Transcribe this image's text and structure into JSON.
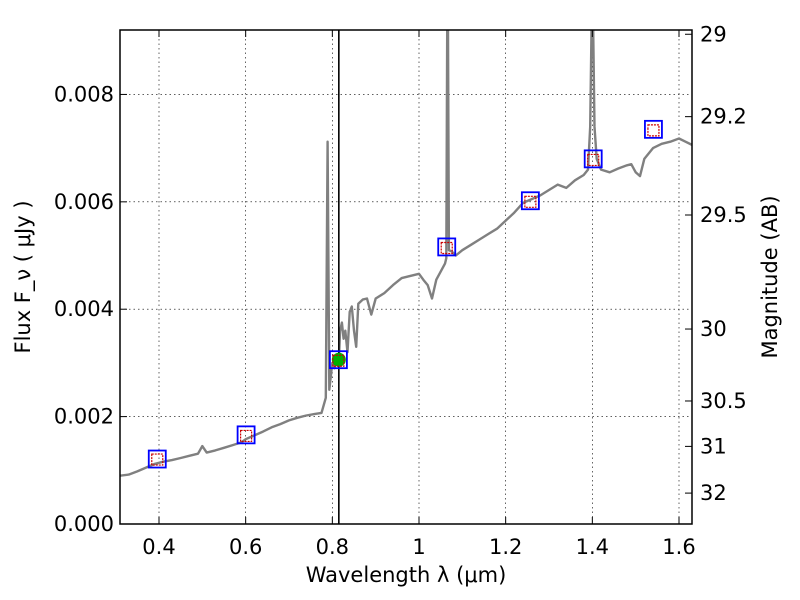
{
  "chart_data": {
    "type": "line",
    "title": "",
    "xlabel": "Wavelength  λ (μm)",
    "ylabel": "Flux  F_ν  ( μJy )",
    "ylabel_right": "Magnitude (AB)",
    "xlim": [
      0.31,
      1.63
    ],
    "ylim": [
      0.0,
      0.0092
    ],
    "grid": true,
    "x_ticks": [
      0.4,
      0.6,
      0.8,
      1.0,
      1.2,
      1.4,
      1.6
    ],
    "x_tick_labels": [
      "0.4",
      "0.6",
      "0.8",
      "1",
      "1.2",
      "1.4",
      "1.6"
    ],
    "y_ticks": [
      0.0,
      0.002,
      0.004,
      0.006,
      0.008
    ],
    "y_tick_labels": [
      "0.000",
      "0.002",
      "0.004",
      "0.006",
      "0.008"
    ],
    "mag_ticks": [
      29,
      29.2,
      29.5,
      30,
      30.5,
      31,
      32
    ],
    "mag_tick_labels": [
      "29",
      "29.2",
      "29.5",
      "30",
      "30.5",
      "31",
      "32"
    ],
    "vertical_line_x": 0.815,
    "colors": {
      "spectrum": "#808080",
      "observed": "#0000ff",
      "model": "#cc0000",
      "highlight": "#00b000"
    },
    "series": [
      {
        "name": "model spectrum",
        "kind": "line",
        "points": [
          [
            0.31,
            0.0009
          ],
          [
            0.33,
            0.00092
          ],
          [
            0.35,
            0.00098
          ],
          [
            0.37,
            0.00105
          ],
          [
            0.39,
            0.00112
          ],
          [
            0.41,
            0.00116
          ],
          [
            0.43,
            0.00119
          ],
          [
            0.45,
            0.00123
          ],
          [
            0.47,
            0.00127
          ],
          [
            0.49,
            0.00131
          ],
          [
            0.5,
            0.00145
          ],
          [
            0.51,
            0.00133
          ],
          [
            0.53,
            0.00137
          ],
          [
            0.55,
            0.00142
          ],
          [
            0.57,
            0.00147
          ],
          [
            0.59,
            0.00152
          ],
          [
            0.6,
            0.00158
          ],
          [
            0.62,
            0.00165
          ],
          [
            0.64,
            0.00172
          ],
          [
            0.66,
            0.0018
          ],
          [
            0.68,
            0.00186
          ],
          [
            0.7,
            0.00193
          ],
          [
            0.72,
            0.00198
          ],
          [
            0.74,
            0.00202
          ],
          [
            0.76,
            0.00205
          ],
          [
            0.775,
            0.00207
          ],
          [
            0.785,
            0.00235
          ],
          [
            0.789,
            0.00712
          ],
          [
            0.793,
            0.0025
          ],
          [
            0.8,
            0.003
          ],
          [
            0.805,
            0.0029
          ],
          [
            0.81,
            0.0031
          ],
          [
            0.815,
            0.00302
          ],
          [
            0.818,
            0.0036
          ],
          [
            0.822,
            0.00375
          ],
          [
            0.826,
            0.00345
          ],
          [
            0.83,
            0.0036
          ],
          [
            0.835,
            0.0032
          ],
          [
            0.84,
            0.00395
          ],
          [
            0.845,
            0.00405
          ],
          [
            0.85,
            0.0036
          ],
          [
            0.855,
            0.0033
          ],
          [
            0.86,
            0.0041
          ],
          [
            0.87,
            0.00418
          ],
          [
            0.88,
            0.0042
          ],
          [
            0.89,
            0.0039
          ],
          [
            0.9,
            0.0042
          ],
          [
            0.92,
            0.0043
          ],
          [
            0.94,
            0.00445
          ],
          [
            0.96,
            0.00458
          ],
          [
            0.98,
            0.00462
          ],
          [
            1.0,
            0.00466
          ],
          [
            1.01,
            0.00455
          ],
          [
            1.02,
            0.00445
          ],
          [
            1.03,
            0.0042
          ],
          [
            1.04,
            0.00455
          ],
          [
            1.05,
            0.0047
          ],
          [
            1.06,
            0.00485
          ],
          [
            1.063,
            0.00495
          ],
          [
            1.065,
            0.0092
          ],
          [
            1.067,
            0.0092
          ],
          [
            1.069,
            0.0051
          ],
          [
            1.075,
            0.00508
          ],
          [
            1.085,
            0.005
          ],
          [
            1.1,
            0.0051
          ],
          [
            1.12,
            0.0052
          ],
          [
            1.14,
            0.0053
          ],
          [
            1.16,
            0.0054
          ],
          [
            1.18,
            0.0055
          ],
          [
            1.2,
            0.00565
          ],
          [
            1.22,
            0.0058
          ],
          [
            1.24,
            0.00598
          ],
          [
            1.26,
            0.00605
          ],
          [
            1.28,
            0.00612
          ],
          [
            1.3,
            0.00622
          ],
          [
            1.32,
            0.00632
          ],
          [
            1.34,
            0.00626
          ],
          [
            1.36,
            0.0064
          ],
          [
            1.38,
            0.0065
          ],
          [
            1.39,
            0.0066
          ],
          [
            1.395,
            0.0074
          ],
          [
            1.398,
            0.0092
          ],
          [
            1.402,
            0.0092
          ],
          [
            1.405,
            0.0074
          ],
          [
            1.41,
            0.0068
          ],
          [
            1.42,
            0.0066
          ],
          [
            1.44,
            0.00655
          ],
          [
            1.46,
            0.00662
          ],
          [
            1.48,
            0.00668
          ],
          [
            1.49,
            0.0067
          ],
          [
            1.5,
            0.00655
          ],
          [
            1.51,
            0.00648
          ],
          [
            1.52,
            0.0068
          ],
          [
            1.54,
            0.007
          ],
          [
            1.56,
            0.00708
          ],
          [
            1.58,
            0.00712
          ],
          [
            1.6,
            0.00718
          ],
          [
            1.615,
            0.00712
          ],
          [
            1.63,
            0.00706
          ]
        ]
      },
      {
        "name": "observed photometry",
        "kind": "square-open",
        "points": [
          [
            0.396,
            0.00121
          ],
          [
            0.601,
            0.00166
          ],
          [
            0.814,
            0.00306
          ],
          [
            1.064,
            0.00516
          ],
          [
            1.257,
            0.00602
          ],
          [
            1.402,
            0.0068
          ],
          [
            1.541,
            0.00735
          ]
        ]
      },
      {
        "name": "model photometry",
        "kind": "square-small",
        "points": [
          [
            0.396,
            0.0012
          ],
          [
            0.601,
            0.00164
          ],
          [
            0.814,
            0.00304
          ],
          [
            1.064,
            0.00514
          ],
          [
            1.257,
            0.006
          ],
          [
            1.402,
            0.00678
          ],
          [
            1.541,
            0.00733
          ]
        ]
      },
      {
        "name": "selected band",
        "kind": "filled-circle",
        "points": [
          [
            0.815,
            0.00306
          ]
        ]
      }
    ]
  }
}
